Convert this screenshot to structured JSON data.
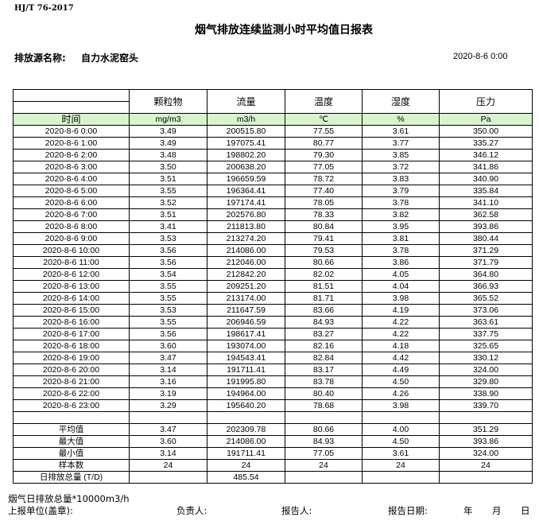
{
  "standard": "HJ/T  76-2017",
  "title": "烟气排放连续监测小时平均值日报表",
  "source_label": "排放源名称:",
  "source_value": "自力水泥窑头",
  "report_time": "2020-8-6 0:00",
  "columns": [
    "颗粒物",
    "流量",
    "温度",
    "湿度",
    "压力"
  ],
  "time_header": "时间",
  "units": [
    "mg/m3",
    "m3/h",
    "℃",
    "%",
    "Pa"
  ],
  "rows": [
    [
      "2020-8-6 0:00",
      "3.49",
      "200515.80",
      "77.55",
      "3.61",
      "350.00"
    ],
    [
      "2020-8-6 1:00",
      "3.49",
      "197075.41",
      "80.77",
      "3.77",
      "335.27"
    ],
    [
      "2020-8-6 2:00",
      "3.48",
      "198802.20",
      "79.30",
      "3.85",
      "346.12"
    ],
    [
      "2020-8-6 3:00",
      "3.50",
      "200638.20",
      "77.05",
      "3.72",
      "341.86"
    ],
    [
      "2020-8-6 4:00",
      "3.51",
      "196659.59",
      "78.72",
      "3.83",
      "340.90"
    ],
    [
      "2020-8-6 5:00",
      "3.55",
      "196364.41",
      "77.40",
      "3.79",
      "335.84"
    ],
    [
      "2020-8-6 6:00",
      "3.52",
      "197174.41",
      "78.05",
      "3.78",
      "341.10"
    ],
    [
      "2020-8-6 7:00",
      "3.51",
      "202576.80",
      "78.33",
      "3.82",
      "362.58"
    ],
    [
      "2020-8-6 8:00",
      "3.41",
      "211813.80",
      "80.84",
      "3.95",
      "393.86"
    ],
    [
      "2020-8-6 9:00",
      "3.53",
      "213274.20",
      "79.41",
      "3.81",
      "380.44"
    ],
    [
      "2020-8-6 10:00",
      "3.56",
      "214086.00",
      "79.53",
      "3.78",
      "371.29"
    ],
    [
      "2020-8-6 11:00",
      "3.56",
      "212046.00",
      "80.66",
      "3.86",
      "371.79"
    ],
    [
      "2020-8-6 12:00",
      "3.54",
      "212842.20",
      "82.02",
      "4.05",
      "364.80"
    ],
    [
      "2020-8-6 13:00",
      "3.55",
      "209251.20",
      "81.51",
      "4.04",
      "366.93"
    ],
    [
      "2020-8-6 14:00",
      "3.55",
      "213174.00",
      "81.71",
      "3.98",
      "365.52"
    ],
    [
      "2020-8-6 15:00",
      "3.53",
      "211647.59",
      "83.66",
      "4.19",
      "373.06"
    ],
    [
      "2020-8-6 16:00",
      "3.55",
      "206946.59",
      "84.93",
      "4.22",
      "363.61"
    ],
    [
      "2020-8-6 17:00",
      "3.56",
      "198617.41",
      "83.27",
      "4.22",
      "337.75"
    ],
    [
      "2020-8-6 18:00",
      "3.60",
      "193074.00",
      "82.16",
      "4.18",
      "325.65"
    ],
    [
      "2020-8-6 19:00",
      "3.47",
      "194543.41",
      "82.84",
      "4.42",
      "330.12"
    ],
    [
      "2020-8-6 20:00",
      "3.14",
      "191711.41",
      "83.17",
      "4.49",
      "324.00"
    ],
    [
      "2020-8-6 21:00",
      "3.16",
      "191995.80",
      "83.78",
      "4.50",
      "329.80"
    ],
    [
      "2020-8-6 22:00",
      "3.19",
      "194964.00",
      "80.40",
      "4.26",
      "338.90"
    ],
    [
      "2020-8-6 23:00",
      "3.29",
      "195640.20",
      "78.68",
      "3.98",
      "339.70"
    ]
  ],
  "stats": [
    [
      "平均值",
      "3.47",
      "202309.78",
      "80.66",
      "4.00",
      "351.29"
    ],
    [
      "最大值",
      "3.60",
      "214086.00",
      "84.93",
      "4.50",
      "393.86"
    ],
    [
      "最小值",
      "3.14",
      "191711.41",
      "77.05",
      "3.61",
      "324.00"
    ],
    [
      "样本数",
      "24",
      "24",
      "24",
      "24",
      "24"
    ],
    [
      "日排放总量 (T/D)",
      "",
      "485.54",
      "",
      "",
      ""
    ]
  ],
  "footer": {
    "note": "烟气日排放总量*10000m3/h",
    "unit_label": "上报单位(盖章):",
    "responsible_label": "负责人:",
    "reporter_label": "报告人:",
    "date_label": "报告日期:",
    "year": "年",
    "month": "月",
    "day": "日"
  },
  "colors": {
    "unit_row_bg": "#d6f5cf"
  }
}
